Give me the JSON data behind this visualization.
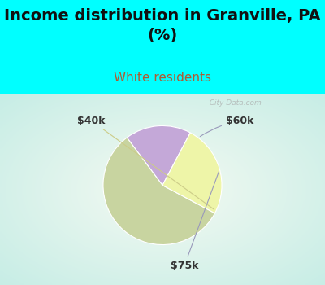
{
  "title": "Income distribution in Granville, PA\n(%)",
  "subtitle": "White residents",
  "title_fontsize": 14,
  "subtitle_fontsize": 11,
  "title_color": "#111111",
  "subtitle_color": "#b05a30",
  "bg_cyan": "#00ffff",
  "chart_bg_color": "#e8f5ee",
  "slices": [
    {
      "label": "$60k",
      "value": 18,
      "color": "#c4a8d8"
    },
    {
      "label": "$75k",
      "value": 57,
      "color": "#c8d4a0"
    },
    {
      "label": "$40k",
      "value": 25,
      "color": "#eef5a8"
    }
  ],
  "startangle": 62,
  "watermark": "  City-Data.com",
  "label_fontsize": 9,
  "label_color": "#333333"
}
